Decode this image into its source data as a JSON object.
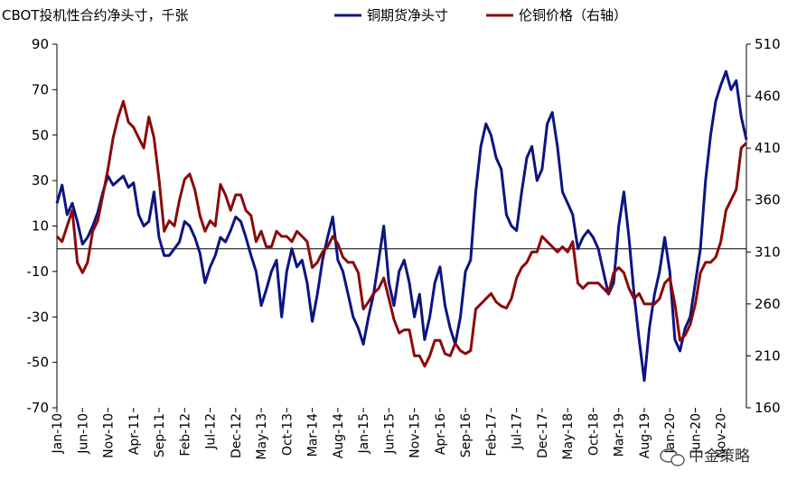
{
  "header": {
    "left_unit_label": "CBOT投机性合约净头寸，千张"
  },
  "watermark": {
    "icon": "wechat-icon",
    "text": "中金策略"
  },
  "chart_data": {
    "type": "line",
    "x_tick_labels": [
      "Jan-10",
      "Jun-10",
      "Nov-10",
      "Apr-11",
      "Sep-11",
      "Feb-12",
      "Jul-12",
      "Dec-12",
      "May-13",
      "Oct-13",
      "Mar-14",
      "Aug-14",
      "Jan-15",
      "Jun-15",
      "Nov-15",
      "Apr-16",
      "Sep-16",
      "Feb-17",
      "Jul-17",
      "Dec-17",
      "May-18",
      "Oct-18",
      "Mar-19",
      "Aug-19",
      "Jan-20",
      "Jun-20",
      "Nov-20"
    ],
    "x_range": [
      "2010-01",
      "2020-12"
    ],
    "y_left": {
      "ylim": [
        -70,
        90
      ],
      "ticks": [
        90,
        70,
        50,
        30,
        10,
        -10,
        -30,
        -50,
        -70
      ]
    },
    "y_right": {
      "ylim": [
        160,
        510
      ],
      "ticks": [
        510,
        460,
        410,
        360,
        310,
        260,
        210,
        160
      ]
    },
    "grid": false,
    "legend_position": "top",
    "zero_line_on_left_axis": true,
    "series": [
      {
        "name": "铜期货净头寸",
        "axis": "left",
        "color": "#0d1480",
        "points": [
          [
            "2010-01",
            20
          ],
          [
            "2010-02",
            28
          ],
          [
            "2010-03",
            15
          ],
          [
            "2010-04",
            20
          ],
          [
            "2010-05",
            12
          ],
          [
            "2010-06",
            2
          ],
          [
            "2010-07",
            5
          ],
          [
            "2010-08",
            10
          ],
          [
            "2010-09",
            16
          ],
          [
            "2010-10",
            25
          ],
          [
            "2010-11",
            32
          ],
          [
            "2010-12",
            28
          ],
          [
            "2011-01",
            30
          ],
          [
            "2011-02",
            32
          ],
          [
            "2011-03",
            27
          ],
          [
            "2011-04",
            29
          ],
          [
            "2011-05",
            15
          ],
          [
            "2011-06",
            10
          ],
          [
            "2011-07",
            12
          ],
          [
            "2011-08",
            25
          ],
          [
            "2011-09",
            5
          ],
          [
            "2011-10",
            -3
          ],
          [
            "2011-11",
            -3
          ],
          [
            "2011-12",
            0
          ],
          [
            "2012-01",
            3
          ],
          [
            "2012-02",
            12
          ],
          [
            "2012-03",
            10
          ],
          [
            "2012-04",
            5
          ],
          [
            "2012-05",
            -2
          ],
          [
            "2012-06",
            -15
          ],
          [
            "2012-07",
            -8
          ],
          [
            "2012-08",
            -3
          ],
          [
            "2012-09",
            5
          ],
          [
            "2012-10",
            3
          ],
          [
            "2012-11",
            8
          ],
          [
            "2012-12",
            14
          ],
          [
            "2013-01",
            12
          ],
          [
            "2013-02",
            5
          ],
          [
            "2013-03",
            -3
          ],
          [
            "2013-04",
            -10
          ],
          [
            "2013-05",
            -25
          ],
          [
            "2013-06",
            -18
          ],
          [
            "2013-07",
            -10
          ],
          [
            "2013-08",
            -5
          ],
          [
            "2013-09",
            -30
          ],
          [
            "2013-10",
            -10
          ],
          [
            "2013-11",
            0
          ],
          [
            "2013-12",
            -8
          ],
          [
            "2014-01",
            -5
          ],
          [
            "2014-02",
            -15
          ],
          [
            "2014-03",
            -32
          ],
          [
            "2014-04",
            -20
          ],
          [
            "2014-05",
            -5
          ],
          [
            "2014-06",
            5
          ],
          [
            "2014-07",
            14
          ],
          [
            "2014-08",
            -5
          ],
          [
            "2014-09",
            -10
          ],
          [
            "2014-10",
            -20
          ],
          [
            "2014-11",
            -30
          ],
          [
            "2014-12",
            -35
          ],
          [
            "2015-01",
            -42
          ],
          [
            "2015-02",
            -30
          ],
          [
            "2015-03",
            -20
          ],
          [
            "2015-04",
            -5
          ],
          [
            "2015-05",
            10
          ],
          [
            "2015-06",
            -15
          ],
          [
            "2015-07",
            -25
          ],
          [
            "2015-08",
            -10
          ],
          [
            "2015-09",
            -5
          ],
          [
            "2015-10",
            -15
          ],
          [
            "2015-11",
            -30
          ],
          [
            "2015-12",
            -20
          ],
          [
            "2016-01",
            -40
          ],
          [
            "2016-02",
            -30
          ],
          [
            "2016-03",
            -15
          ],
          [
            "2016-04",
            -8
          ],
          [
            "2016-05",
            -25
          ],
          [
            "2016-06",
            -35
          ],
          [
            "2016-07",
            -42
          ],
          [
            "2016-08",
            -30
          ],
          [
            "2016-09",
            -10
          ],
          [
            "2016-10",
            -5
          ],
          [
            "2016-11",
            25
          ],
          [
            "2016-12",
            45
          ],
          [
            "2017-01",
            55
          ],
          [
            "2017-02",
            50
          ],
          [
            "2017-03",
            40
          ],
          [
            "2017-04",
            35
          ],
          [
            "2017-05",
            15
          ],
          [
            "2017-06",
            10
          ],
          [
            "2017-07",
            8
          ],
          [
            "2017-08",
            25
          ],
          [
            "2017-09",
            40
          ],
          [
            "2017-10",
            45
          ],
          [
            "2017-11",
            30
          ],
          [
            "2017-12",
            35
          ],
          [
            "2018-01",
            55
          ],
          [
            "2018-02",
            60
          ],
          [
            "2018-03",
            45
          ],
          [
            "2018-04",
            25
          ],
          [
            "2018-05",
            20
          ],
          [
            "2018-06",
            15
          ],
          [
            "2018-07",
            0
          ],
          [
            "2018-08",
            5
          ],
          [
            "2018-09",
            8
          ],
          [
            "2018-10",
            5
          ],
          [
            "2018-11",
            0
          ],
          [
            "2018-12",
            -10
          ],
          [
            "2019-01",
            -20
          ],
          [
            "2019-02",
            -15
          ],
          [
            "2019-03",
            10
          ],
          [
            "2019-04",
            25
          ],
          [
            "2019-05",
            5
          ],
          [
            "2019-06",
            -20
          ],
          [
            "2019-07",
            -40
          ],
          [
            "2019-08",
            -58
          ],
          [
            "2019-09",
            -35
          ],
          [
            "2019-10",
            -20
          ],
          [
            "2019-11",
            -10
          ],
          [
            "2019-12",
            5
          ],
          [
            "2020-01",
            -10
          ],
          [
            "2020-02",
            -40
          ],
          [
            "2020-03",
            -45
          ],
          [
            "2020-04",
            -35
          ],
          [
            "2020-05",
            -30
          ],
          [
            "2020-06",
            -15
          ],
          [
            "2020-07",
            0
          ],
          [
            "2020-08",
            30
          ],
          [
            "2020-09",
            50
          ],
          [
            "2020-10",
            65
          ],
          [
            "2020-11",
            72
          ],
          [
            "2020-12",
            78
          ],
          [
            "2021-01",
            70
          ],
          [
            "2021-02",
            74
          ],
          [
            "2021-03",
            58
          ],
          [
            "2021-04",
            48
          ]
        ]
      },
      {
        "name": "伦铜价格（右轴）",
        "axis": "right",
        "color": "#8b0a0a",
        "points": [
          [
            "2010-01",
            325
          ],
          [
            "2010-02",
            320
          ],
          [
            "2010-03",
            335
          ],
          [
            "2010-04",
            350
          ],
          [
            "2010-05",
            300
          ],
          [
            "2010-06",
            290
          ],
          [
            "2010-07",
            300
          ],
          [
            "2010-08",
            330
          ],
          [
            "2010-09",
            340
          ],
          [
            "2010-10",
            365
          ],
          [
            "2010-11",
            390
          ],
          [
            "2010-12",
            420
          ],
          [
            "2011-01",
            440
          ],
          [
            "2011-02",
            455
          ],
          [
            "2011-03",
            435
          ],
          [
            "2011-04",
            430
          ],
          [
            "2011-05",
            420
          ],
          [
            "2011-06",
            410
          ],
          [
            "2011-07",
            440
          ],
          [
            "2011-08",
            420
          ],
          [
            "2011-09",
            380
          ],
          [
            "2011-10",
            330
          ],
          [
            "2011-11",
            340
          ],
          [
            "2011-12",
            335
          ],
          [
            "2012-01",
            360
          ],
          [
            "2012-02",
            380
          ],
          [
            "2012-03",
            385
          ],
          [
            "2012-04",
            370
          ],
          [
            "2012-05",
            345
          ],
          [
            "2012-06",
            330
          ],
          [
            "2012-07",
            340
          ],
          [
            "2012-08",
            335
          ],
          [
            "2012-09",
            375
          ],
          [
            "2012-10",
            365
          ],
          [
            "2012-11",
            350
          ],
          [
            "2012-12",
            365
          ],
          [
            "2013-01",
            365
          ],
          [
            "2013-02",
            350
          ],
          [
            "2013-03",
            345
          ],
          [
            "2013-04",
            320
          ],
          [
            "2013-05",
            330
          ],
          [
            "2013-06",
            315
          ],
          [
            "2013-07",
            315
          ],
          [
            "2013-08",
            330
          ],
          [
            "2013-09",
            325
          ],
          [
            "2013-10",
            325
          ],
          [
            "2013-11",
            320
          ],
          [
            "2013-12",
            330
          ],
          [
            "2014-01",
            325
          ],
          [
            "2014-02",
            320
          ],
          [
            "2014-03",
            295
          ],
          [
            "2014-04",
            300
          ],
          [
            "2014-05",
            310
          ],
          [
            "2014-06",
            315
          ],
          [
            "2014-07",
            325
          ],
          [
            "2014-08",
            318
          ],
          [
            "2014-09",
            305
          ],
          [
            "2014-10",
            300
          ],
          [
            "2014-11",
            300
          ],
          [
            "2014-12",
            290
          ],
          [
            "2015-01",
            255
          ],
          [
            "2015-02",
            262
          ],
          [
            "2015-03",
            270
          ],
          [
            "2015-04",
            275
          ],
          [
            "2015-05",
            285
          ],
          [
            "2015-06",
            265
          ],
          [
            "2015-07",
            245
          ],
          [
            "2015-08",
            232
          ],
          [
            "2015-09",
            235
          ],
          [
            "2015-10",
            235
          ],
          [
            "2015-11",
            210
          ],
          [
            "2015-12",
            210
          ],
          [
            "2016-01",
            200
          ],
          [
            "2016-02",
            210
          ],
          [
            "2016-03",
            225
          ],
          [
            "2016-04",
            225
          ],
          [
            "2016-05",
            212
          ],
          [
            "2016-06",
            210
          ],
          [
            "2016-07",
            222
          ],
          [
            "2016-08",
            215
          ],
          [
            "2016-09",
            212
          ],
          [
            "2016-10",
            215
          ],
          [
            "2016-11",
            255
          ],
          [
            "2016-12",
            260
          ],
          [
            "2017-01",
            265
          ],
          [
            "2017-02",
            270
          ],
          [
            "2017-03",
            262
          ],
          [
            "2017-04",
            258
          ],
          [
            "2017-05",
            256
          ],
          [
            "2017-06",
            265
          ],
          [
            "2017-07",
            285
          ],
          [
            "2017-08",
            295
          ],
          [
            "2017-09",
            300
          ],
          [
            "2017-10",
            310
          ],
          [
            "2017-11",
            310
          ],
          [
            "2017-12",
            325
          ],
          [
            "2018-01",
            320
          ],
          [
            "2018-02",
            315
          ],
          [
            "2018-03",
            310
          ],
          [
            "2018-04",
            315
          ],
          [
            "2018-05",
            310
          ],
          [
            "2018-06",
            320
          ],
          [
            "2018-07",
            280
          ],
          [
            "2018-08",
            275
          ],
          [
            "2018-09",
            280
          ],
          [
            "2018-10",
            280
          ],
          [
            "2018-11",
            280
          ],
          [
            "2018-12",
            275
          ],
          [
            "2019-01",
            270
          ],
          [
            "2019-02",
            290
          ],
          [
            "2019-03",
            295
          ],
          [
            "2019-04",
            290
          ],
          [
            "2019-05",
            275
          ],
          [
            "2019-06",
            265
          ],
          [
            "2019-07",
            270
          ],
          [
            "2019-08",
            260
          ],
          [
            "2019-09",
            260
          ],
          [
            "2019-10",
            260
          ],
          [
            "2019-11",
            265
          ],
          [
            "2019-12",
            280
          ],
          [
            "2020-01",
            285
          ],
          [
            "2020-02",
            260
          ],
          [
            "2020-03",
            225
          ],
          [
            "2020-04",
            230
          ],
          [
            "2020-05",
            240
          ],
          [
            "2020-06",
            260
          ],
          [
            "2020-07",
            290
          ],
          [
            "2020-08",
            300
          ],
          [
            "2020-09",
            300
          ],
          [
            "2020-10",
            305
          ],
          [
            "2020-11",
            320
          ],
          [
            "2020-12",
            350
          ],
          [
            "2021-01",
            360
          ],
          [
            "2021-02",
            370
          ],
          [
            "2021-03",
            410
          ],
          [
            "2021-04",
            415
          ]
        ]
      }
    ]
  }
}
